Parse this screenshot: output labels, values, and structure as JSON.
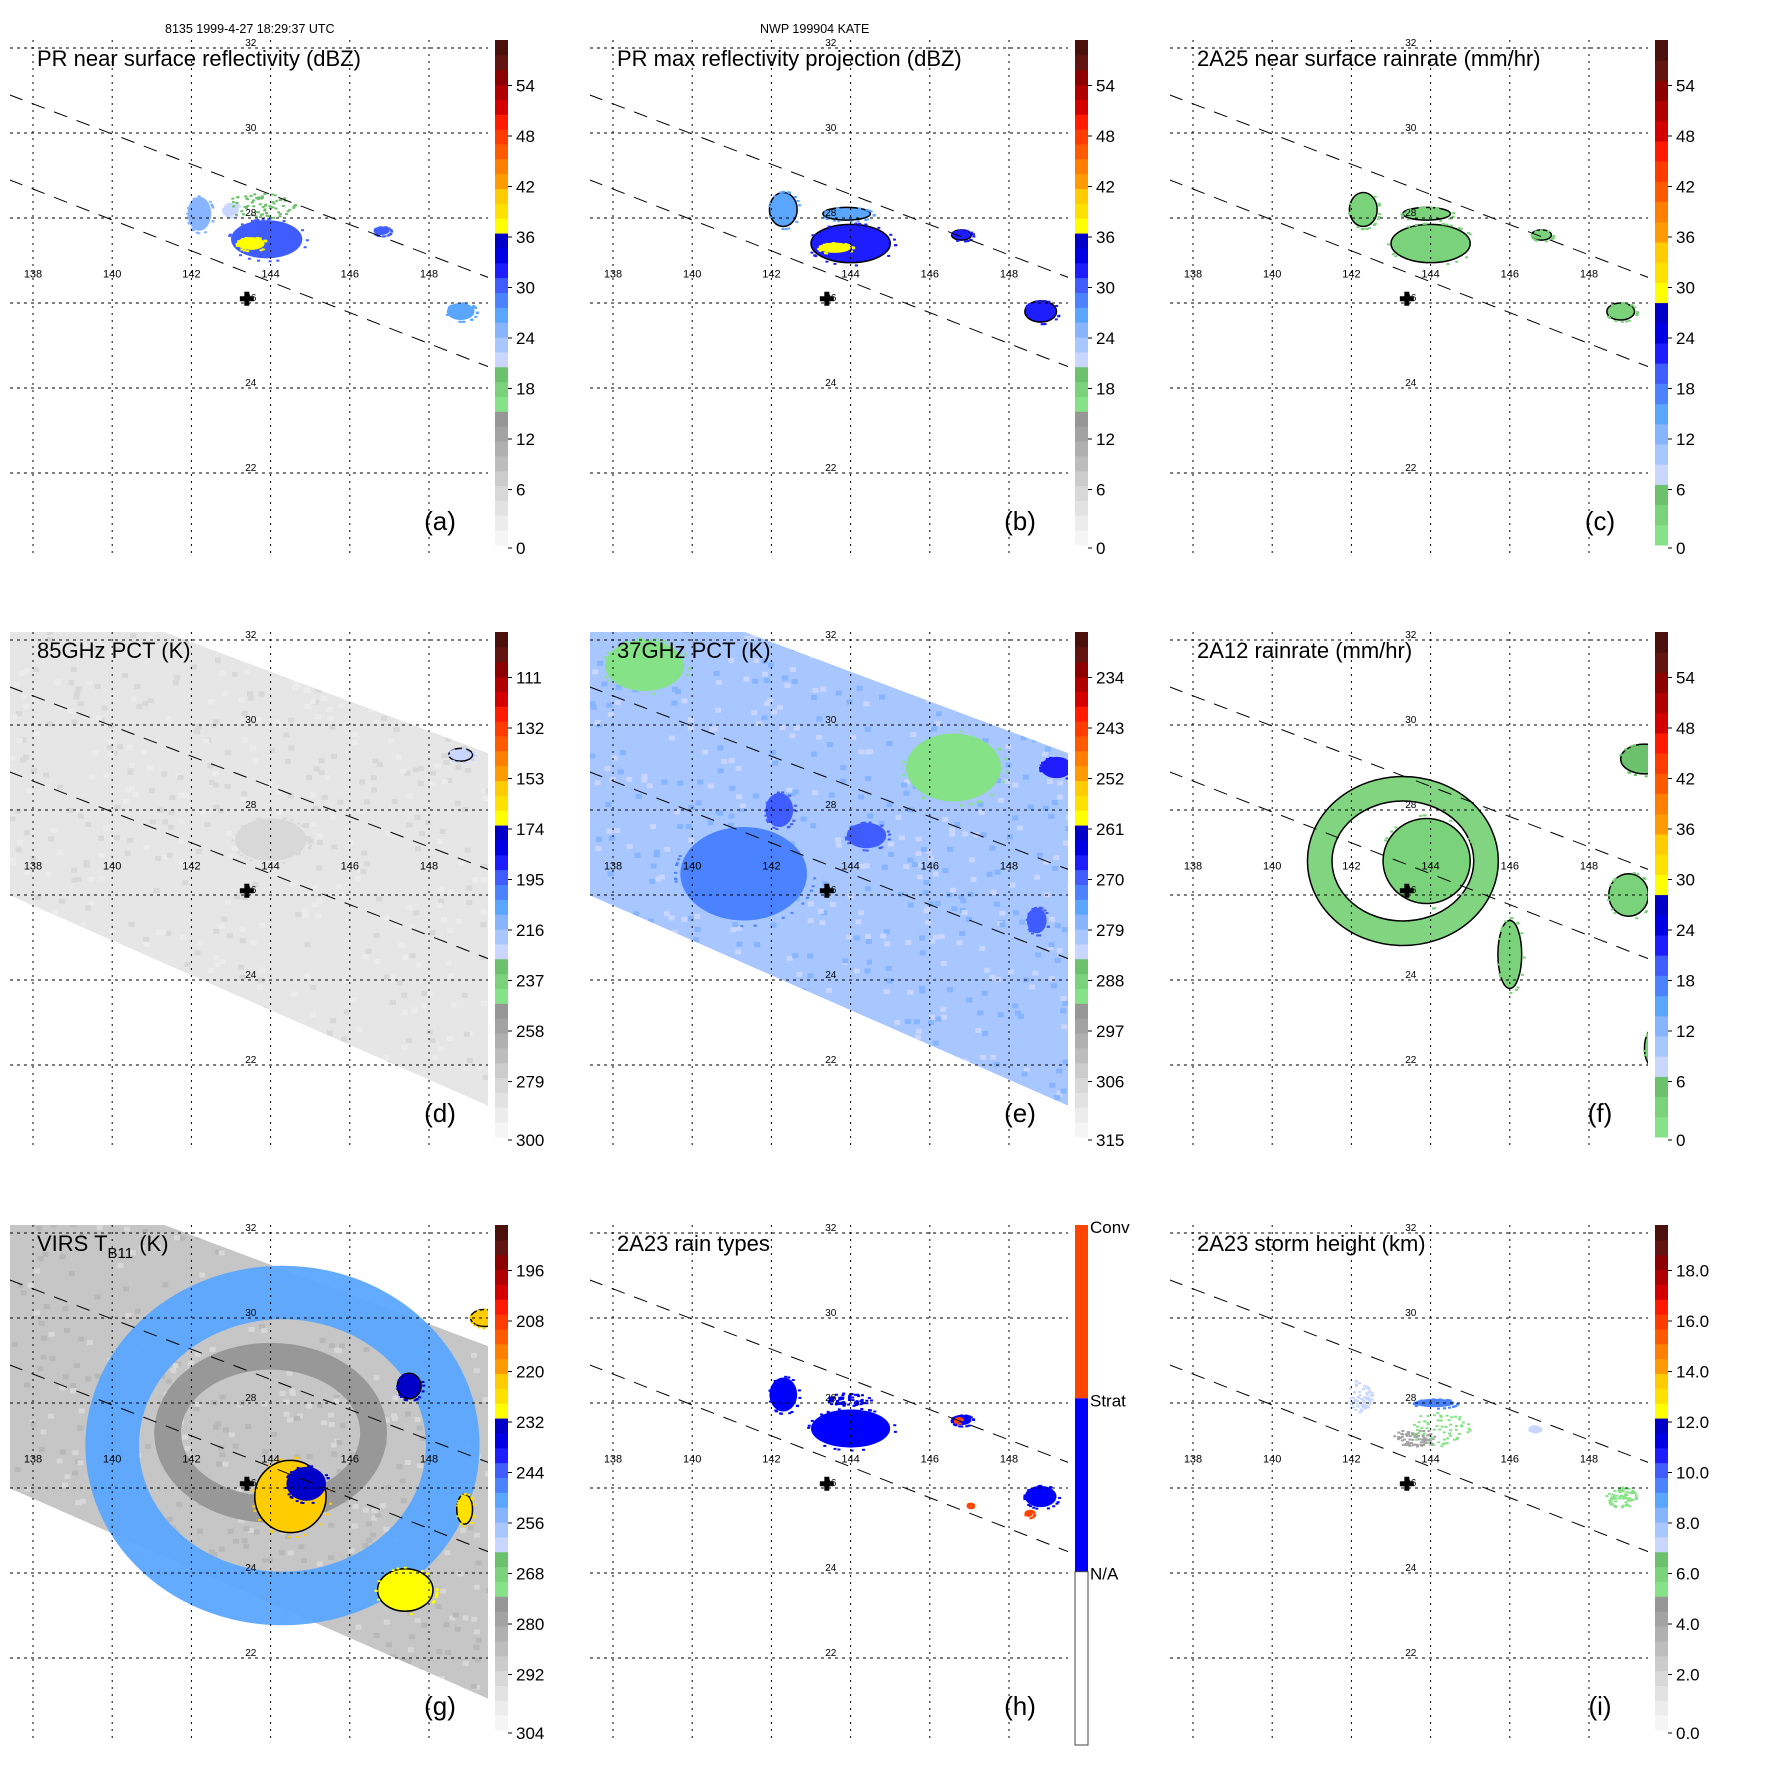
{
  "header": {
    "left": "8135 1999-4-27 18:29:37 UTC",
    "center": "NWP 199904 KATE"
  },
  "map": {
    "lon_ticks": [
      138,
      140,
      142,
      144,
      146,
      148
    ],
    "lat_ticks": [
      32,
      30,
      28,
      26,
      24,
      22
    ],
    "lon_range": [
      137.5,
      150.5
    ],
    "lat_range": [
      20.8,
      32.3
    ],
    "storm_center": {
      "lon": 143.4,
      "lat": 26.1,
      "marker": "cross-icon"
    },
    "swath_edges": [
      {
        "from": [
          137.4,
          30.9
        ],
        "to": [
          149.5,
          26.6
        ]
      },
      {
        "from": [
          137.4,
          28.9
        ],
        "to": [
          149.5,
          24.5
        ]
      }
    ]
  },
  "palette_standard": [
    "#f5f5f5",
    "#ececec",
    "#e2e2e2",
    "#d8d8d8",
    "#cccccc",
    "#bdbdbd",
    "#b0b0b0",
    "#a3a3a3",
    "#969696",
    "#86e286",
    "#7ad37a",
    "#6cc26c",
    "#c9d6ff",
    "#a8c6ff",
    "#86b4ff",
    "#5aa6ff",
    "#4a82ff",
    "#3f5cff",
    "#1d1dff",
    "#0000e6",
    "#0000c8",
    "#ffff00",
    "#ffe100",
    "#ffcc00",
    "#ff9b00",
    "#ff8000",
    "#ff5a00",
    "#ff3c00",
    "#ff1a00",
    "#d40000",
    "#b00000",
    "#8c0000",
    "#641410",
    "#4b100c"
  ],
  "chart_data": [
    {
      "id": "a",
      "type": "heatmap",
      "title": "PR near surface reflectivity (dBZ)",
      "panel_label": "(a)",
      "colorbar": {
        "ticks": [
          "54",
          "48",
          "42",
          "36",
          "30",
          "24",
          "18",
          "12",
          "6",
          "0"
        ],
        "range": [
          0,
          60
        ],
        "scheme": "reflectivity"
      },
      "background": "none",
      "coverage": "pr_swath",
      "features": [
        {
          "lon": 143.9,
          "lat": 27.5,
          "rx": 0.9,
          "ry": 0.45,
          "value": 30,
          "kind": "blob"
        },
        {
          "lon": 143.5,
          "lat": 27.4,
          "rx": 0.35,
          "ry": 0.15,
          "value": 38,
          "kind": "blob"
        },
        {
          "lon": 142.2,
          "lat": 28.1,
          "rx": 0.3,
          "ry": 0.4,
          "value": 25,
          "kind": "blob"
        },
        {
          "lon": 143.0,
          "lat": 28.2,
          "rx": 0.2,
          "ry": 0.15,
          "value": 22,
          "kind": "blob"
        },
        {
          "lon": 146.8,
          "lat": 27.7,
          "rx": 0.2,
          "ry": 0.1,
          "value": 30,
          "kind": "blob"
        },
        {
          "lon": 148.8,
          "lat": 25.8,
          "rx": 0.35,
          "ry": 0.2,
          "value": 28,
          "kind": "blob"
        },
        {
          "lon": 143.7,
          "lat": 28.3,
          "rx": 0.9,
          "ry": 0.3,
          "value": 20,
          "kind": "scatter"
        }
      ]
    },
    {
      "id": "b",
      "type": "heatmap",
      "title": "PR max reflectivity projection (dBZ)",
      "panel_label": "(b)",
      "colorbar": {
        "ticks": [
          "54",
          "48",
          "42",
          "36",
          "30",
          "24",
          "18",
          "12",
          "6",
          "0"
        ],
        "range": [
          0,
          60
        ],
        "scheme": "reflectivity"
      },
      "background": "none",
      "coverage": "pr_swath",
      "features": [
        {
          "lon": 144.0,
          "lat": 27.4,
          "rx": 1.0,
          "ry": 0.45,
          "value": 32,
          "kind": "blob",
          "contour": true
        },
        {
          "lon": 143.6,
          "lat": 27.3,
          "rx": 0.4,
          "ry": 0.12,
          "value": 38,
          "kind": "blob"
        },
        {
          "lon": 142.3,
          "lat": 28.2,
          "rx": 0.35,
          "ry": 0.4,
          "value": 28,
          "kind": "blob",
          "contour": true
        },
        {
          "lon": 143.9,
          "lat": 28.1,
          "rx": 0.6,
          "ry": 0.15,
          "value": 28,
          "kind": "blob",
          "contour": true
        },
        {
          "lon": 146.8,
          "lat": 27.6,
          "rx": 0.25,
          "ry": 0.12,
          "value": 33,
          "kind": "blob",
          "contour": true
        },
        {
          "lon": 148.8,
          "lat": 25.8,
          "rx": 0.4,
          "ry": 0.25,
          "value": 33,
          "kind": "blob",
          "contour": true
        }
      ]
    },
    {
      "id": "c",
      "type": "heatmap",
      "title": "2A25 near surface rainrate (mm/hr)",
      "panel_label": "(c)",
      "colorbar": {
        "ticks": [
          "54",
          "48",
          "42",
          "36",
          "30",
          "24",
          "18",
          "12",
          "6",
          "0"
        ],
        "range": [
          0,
          60
        ],
        "scheme": "rainrate"
      },
      "background": "none",
      "coverage": "pr_swath",
      "features": [
        {
          "lon": 144.0,
          "lat": 27.4,
          "rx": 1.0,
          "ry": 0.45,
          "value": 4,
          "kind": "blob",
          "contour": true
        },
        {
          "lon": 142.3,
          "lat": 28.2,
          "rx": 0.35,
          "ry": 0.4,
          "value": 3,
          "kind": "blob",
          "contour": true
        },
        {
          "lon": 143.9,
          "lat": 28.1,
          "rx": 0.6,
          "ry": 0.15,
          "value": 3,
          "kind": "blob",
          "contour": true
        },
        {
          "lon": 146.8,
          "lat": 27.6,
          "rx": 0.25,
          "ry": 0.12,
          "value": 4,
          "kind": "blob",
          "contour": true
        },
        {
          "lon": 148.8,
          "lat": 25.8,
          "rx": 0.35,
          "ry": 0.2,
          "value": 4,
          "kind": "blob",
          "contour": true
        }
      ]
    },
    {
      "id": "d",
      "type": "heatmap",
      "title": "85GHz PCT (K)",
      "panel_label": "(d)",
      "colorbar": {
        "ticks": [
          "111",
          "132",
          "153",
          "174",
          "195",
          "216",
          "237",
          "258",
          "279",
          "300"
        ],
        "range": [
          300,
          90
        ],
        "scheme": "standard"
      },
      "background": "#e6e6e6",
      "coverage": "tmi_swath",
      "features": [
        {
          "lon": 144.0,
          "lat": 27.3,
          "rx": 0.9,
          "ry": 0.5,
          "value": 280,
          "kind": "blob"
        },
        {
          "lon": 148.8,
          "lat": 29.3,
          "rx": 0.3,
          "ry": 0.15,
          "value": 225,
          "kind": "blob",
          "contour": true
        }
      ]
    },
    {
      "id": "e",
      "type": "heatmap",
      "title": "37GHz PCT (K)",
      "panel_label": "(e)",
      "colorbar": {
        "ticks": [
          "234",
          "243",
          "252",
          "261",
          "270",
          "279",
          "288",
          "297",
          "306",
          "315"
        ],
        "range": [
          315,
          225
        ],
        "scheme": "standard"
      },
      "background": "#a8c6ff",
      "coverage": "tmi_swath",
      "features": [
        {
          "lon": 141.3,
          "lat": 26.5,
          "rx": 1.6,
          "ry": 1.1,
          "value": 272,
          "kind": "blob"
        },
        {
          "lon": 142.2,
          "lat": 28.0,
          "rx": 0.35,
          "ry": 0.4,
          "value": 270,
          "kind": "blob"
        },
        {
          "lon": 144.4,
          "lat": 27.4,
          "rx": 0.5,
          "ry": 0.3,
          "value": 270,
          "kind": "blob"
        },
        {
          "lon": 146.6,
          "lat": 29.0,
          "rx": 1.2,
          "ry": 0.8,
          "value": 289,
          "kind": "blob"
        },
        {
          "lon": 138.8,
          "lat": 31.4,
          "rx": 1.0,
          "ry": 0.6,
          "value": 289,
          "kind": "blob"
        },
        {
          "lon": 148.7,
          "lat": 25.4,
          "rx": 0.25,
          "ry": 0.3,
          "value": 268,
          "kind": "blob"
        },
        {
          "lon": 149.2,
          "lat": 29.0,
          "rx": 0.4,
          "ry": 0.25,
          "value": 266,
          "kind": "blob"
        }
      ]
    },
    {
      "id": "f",
      "type": "heatmap",
      "title": "2A12 rainrate (mm/hr)",
      "panel_label": "(f)",
      "colorbar": {
        "ticks": [
          "54",
          "48",
          "42",
          "36",
          "30",
          "24",
          "18",
          "12",
          "6",
          "0"
        ],
        "range": [
          0,
          60
        ],
        "scheme": "rainrate"
      },
      "background": "none",
      "coverage": "none",
      "features": [
        {
          "lon": 143.3,
          "lat": 26.8,
          "rx": 2.1,
          "ry": 1.7,
          "value": 3,
          "kind": "ring",
          "contour": true
        },
        {
          "lon": 143.9,
          "lat": 26.8,
          "rx": 1.1,
          "ry": 1.0,
          "value": 3,
          "kind": "blob",
          "contour": true
        },
        {
          "lon": 149.4,
          "lat": 29.2,
          "rx": 0.6,
          "ry": 0.35,
          "value": 5,
          "kind": "blob",
          "contour": true
        },
        {
          "lon": 149.0,
          "lat": 26.0,
          "rx": 0.5,
          "ry": 0.5,
          "value": 3,
          "kind": "blob",
          "contour": true
        },
        {
          "lon": 146.0,
          "lat": 24.6,
          "rx": 0.3,
          "ry": 0.8,
          "value": 3,
          "kind": "blob",
          "contour": true
        },
        {
          "lon": 149.7,
          "lat": 22.4,
          "rx": 0.3,
          "ry": 0.5,
          "value": 3,
          "kind": "blob",
          "contour": true
        }
      ]
    },
    {
      "id": "g",
      "type": "heatmap",
      "title_main": "VIRS T",
      "title_sub": "B11",
      "title_tail": " (K)",
      "panel_label": "(g)",
      "colorbar": {
        "ticks": [
          "196",
          "208",
          "220",
          "232",
          "244",
          "256",
          "268",
          "280",
          "292",
          "304"
        ],
        "range": [
          304,
          184
        ],
        "scheme": "standard"
      },
      "background": "#c6c6c6",
      "coverage": "tmi_swath",
      "features": [
        {
          "lon": 144.3,
          "lat": 27.0,
          "rx": 4.3,
          "ry": 3.6,
          "value": 250,
          "kind": "ring"
        },
        {
          "lon": 144.0,
          "lat": 27.3,
          "rx": 2.6,
          "ry": 1.8,
          "value": 275,
          "kind": "ring"
        },
        {
          "lon": 144.5,
          "lat": 25.8,
          "rx": 0.9,
          "ry": 0.85,
          "value": 222,
          "kind": "blob",
          "contour": true
        },
        {
          "lon": 144.9,
          "lat": 26.1,
          "rx": 0.5,
          "ry": 0.4,
          "value": 230,
          "kind": "blob"
        },
        {
          "lon": 147.4,
          "lat": 23.6,
          "rx": 0.7,
          "ry": 0.5,
          "value": 228,
          "kind": "blob",
          "contour": true
        },
        {
          "lon": 148.9,
          "lat": 25.5,
          "rx": 0.2,
          "ry": 0.35,
          "value": 225,
          "kind": "blob",
          "contour": true
        },
        {
          "lon": 149.4,
          "lat": 30.0,
          "rx": 0.35,
          "ry": 0.2,
          "value": 220,
          "kind": "blob",
          "contour": true
        },
        {
          "lon": 147.5,
          "lat": 28.4,
          "rx": 0.3,
          "ry": 0.3,
          "value": 230,
          "kind": "blob",
          "contour": true
        }
      ]
    },
    {
      "id": "h",
      "type": "heatmap",
      "title": "2A23 rain types",
      "panel_label": "(h)",
      "colorbar": {
        "categories": [
          "Conv",
          "Strat",
          "N/A"
        ],
        "colors": [
          "#ff4400",
          "#0000ff",
          "#ffffff"
        ],
        "scheme": "categorical"
      },
      "background": "none",
      "coverage": "pr_swath",
      "features": [
        {
          "lon": 144.0,
          "lat": 27.4,
          "rx": 1.0,
          "ry": 0.45,
          "value": "Strat",
          "kind": "blob"
        },
        {
          "lon": 142.3,
          "lat": 28.2,
          "rx": 0.35,
          "ry": 0.4,
          "value": "Strat",
          "kind": "blob"
        },
        {
          "lon": 143.9,
          "lat": 28.1,
          "rx": 0.6,
          "ry": 0.15,
          "value": "Strat",
          "kind": "scatter"
        },
        {
          "lon": 146.8,
          "lat": 27.6,
          "rx": 0.25,
          "ry": 0.12,
          "value": "Strat",
          "kind": "blob"
        },
        {
          "lon": 146.7,
          "lat": 27.6,
          "rx": 0.08,
          "ry": 0.06,
          "value": "Conv",
          "kind": "blob"
        },
        {
          "lon": 148.8,
          "lat": 25.8,
          "rx": 0.4,
          "ry": 0.25,
          "value": "Strat",
          "kind": "blob"
        },
        {
          "lon": 148.5,
          "lat": 25.4,
          "rx": 0.1,
          "ry": 0.08,
          "value": "Conv",
          "kind": "blob"
        },
        {
          "lon": 147.0,
          "lat": 25.6,
          "rx": 0.06,
          "ry": 0.05,
          "value": "Conv",
          "kind": "blob"
        }
      ]
    },
    {
      "id": "i",
      "type": "heatmap",
      "title": "2A23 storm height (km)",
      "panel_label": "(i)",
      "colorbar": {
        "ticks": [
          "18.0",
          "16.0",
          "14.0",
          "12.0",
          "10.0",
          "8.0",
          "6.0",
          "4.0",
          "2.0",
          "0.0"
        ],
        "range": [
          0,
          20
        ],
        "scheme": "standard_rev"
      },
      "background": "none",
      "coverage": "pr_swath",
      "features": [
        {
          "lon": 144.2,
          "lat": 27.4,
          "rx": 0.8,
          "ry": 0.4,
          "value": 5.8,
          "kind": "scatter"
        },
        {
          "lon": 143.6,
          "lat": 27.2,
          "rx": 0.6,
          "ry": 0.2,
          "value": 4.5,
          "kind": "scatter"
        },
        {
          "lon": 144.1,
          "lat": 28.0,
          "rx": 0.5,
          "ry": 0.1,
          "value": 9.5,
          "kind": "blob"
        },
        {
          "lon": 142.2,
          "lat": 28.2,
          "rx": 0.3,
          "ry": 0.4,
          "value": 7.5,
          "kind": "scatter"
        },
        {
          "lon": 148.8,
          "lat": 25.8,
          "rx": 0.4,
          "ry": 0.25,
          "value": 5.8,
          "kind": "scatter"
        },
        {
          "lon": 146.6,
          "lat": 27.4,
          "rx": 0.15,
          "ry": 0.08,
          "value": 7.5,
          "kind": "scatter"
        }
      ]
    }
  ]
}
